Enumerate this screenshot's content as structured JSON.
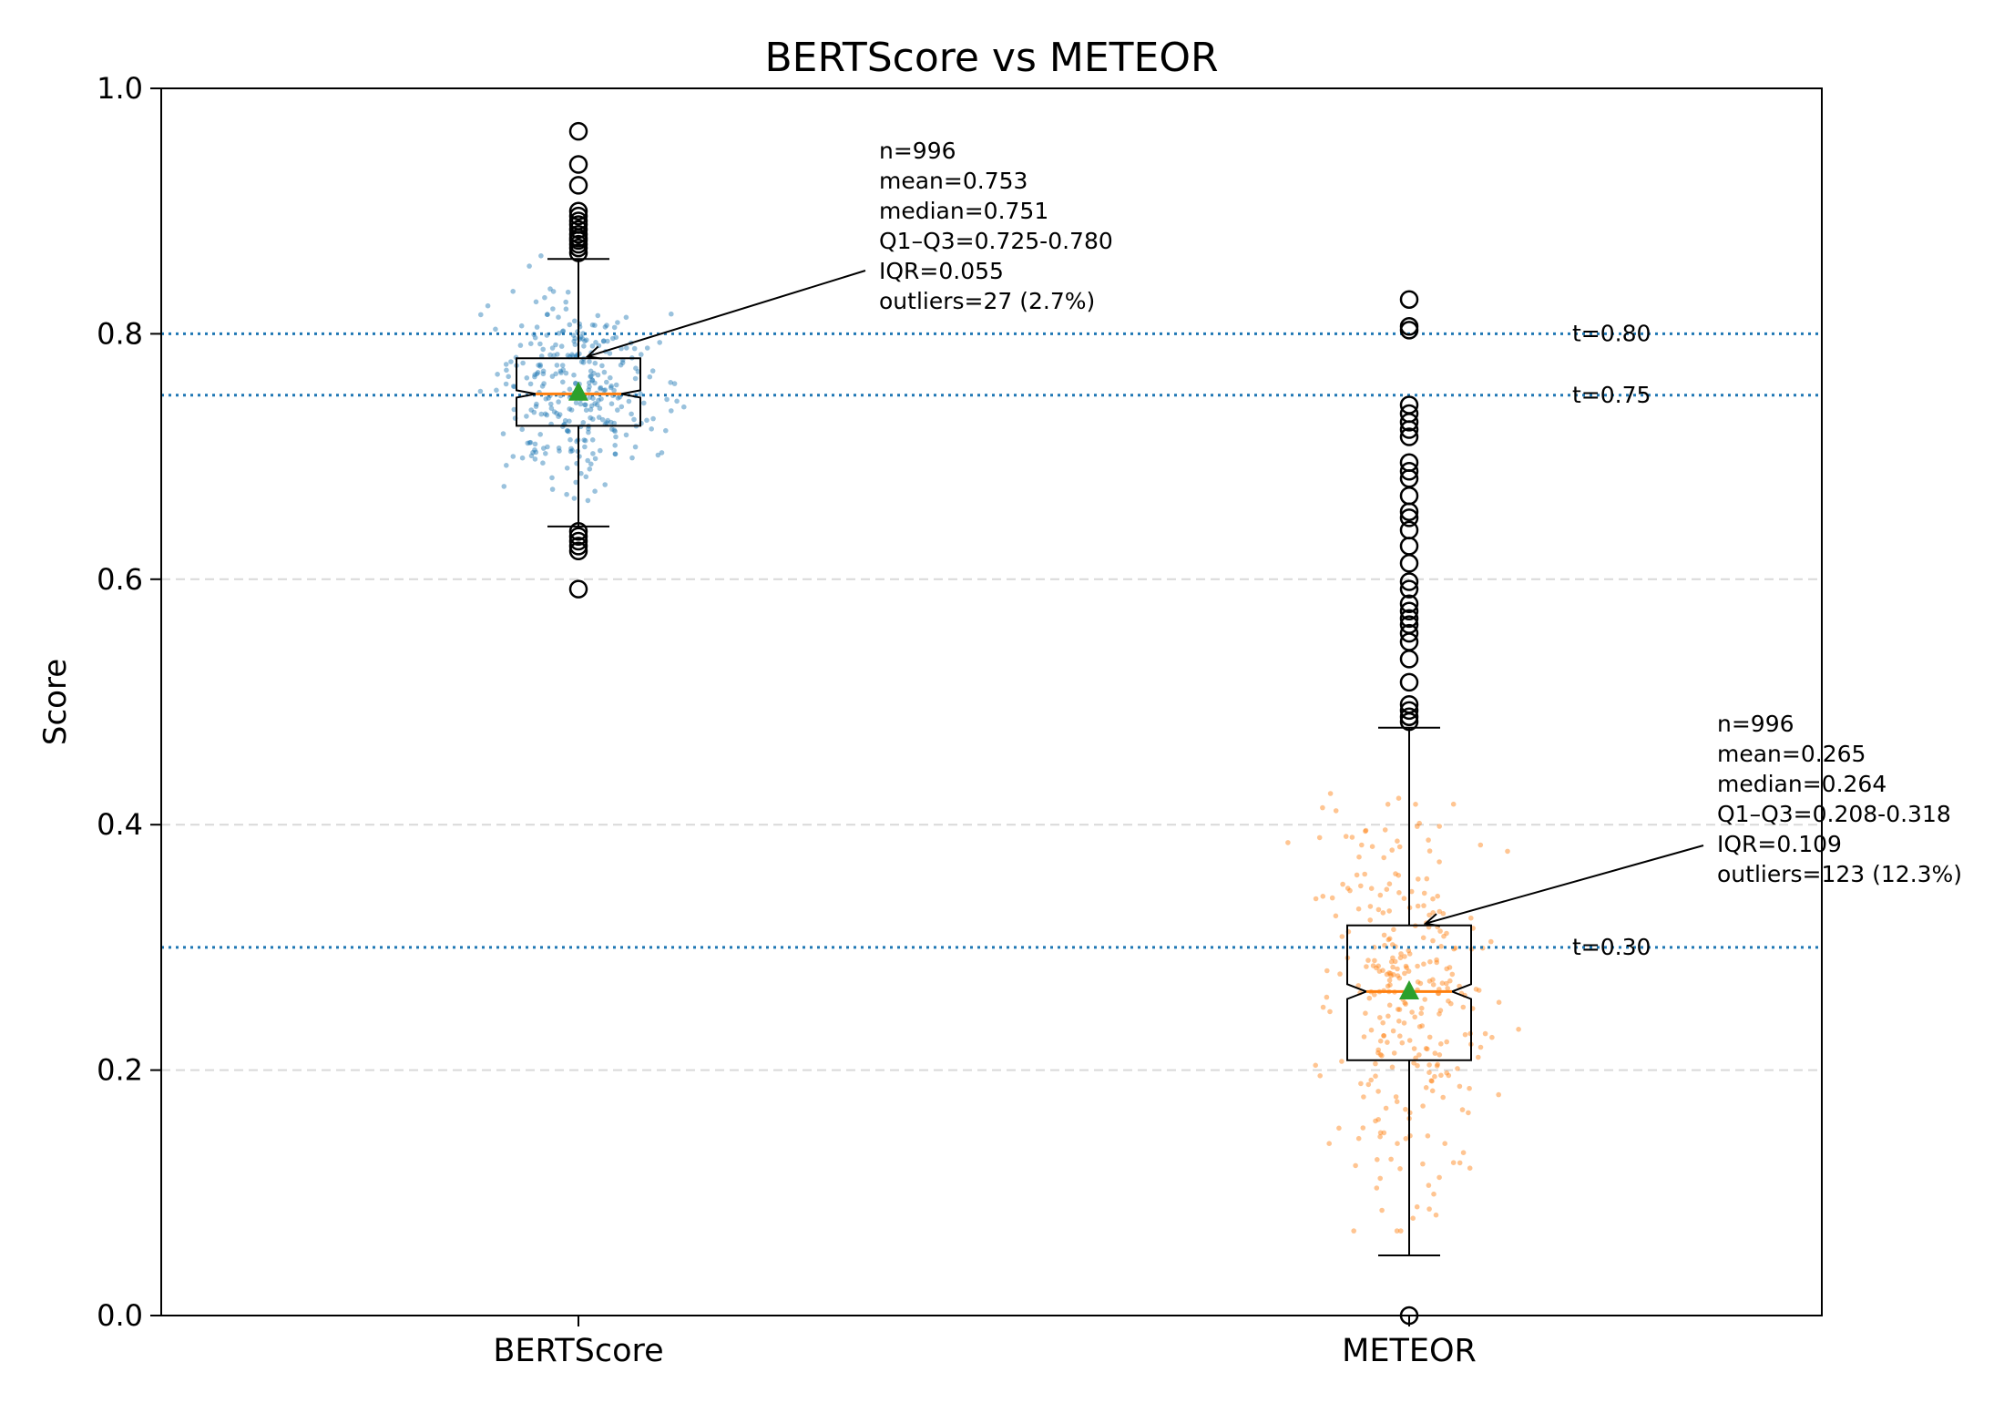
{
  "chart_data": {
    "type": "box",
    "title": "BERTScore vs METEOR",
    "xlabel": "",
    "ylabel": "Score",
    "ylim": [
      0.0,
      1.0
    ],
    "yticks": [
      0.0,
      0.2,
      0.4,
      0.6,
      0.8,
      1.0
    ],
    "ytick_labels": [
      "0.0",
      "0.2",
      "0.4",
      "0.6",
      "0.8",
      "1.0"
    ],
    "categories": [
      "BERTScore",
      "METEOR"
    ],
    "grid": "horizontal dashed at 0.2 0.4 0.6",
    "boxes": [
      {
        "name": "BERTScore",
        "color": "#1f77b4",
        "q1": 0.725,
        "median": 0.751,
        "q3": 0.78,
        "mean": 0.753,
        "whisker_low": 0.643,
        "whisker_high": 0.861,
        "notch_low": 0.748,
        "notch_high": 0.754,
        "outliers": [
          0.965,
          0.938,
          0.921,
          0.9,
          0.896,
          0.892,
          0.889,
          0.885,
          0.881,
          0.878,
          0.876,
          0.873,
          0.87,
          0.866,
          0.639,
          0.635,
          0.631,
          0.627,
          0.623,
          0.592
        ],
        "annotation": [
          "n=996",
          "mean=0.753",
          "median=0.751",
          "Q1–Q3=0.725-0.780",
          "IQR=0.055",
          "outliers=27 (2.7%)"
        ]
      },
      {
        "name": "METEOR",
        "color": "#ff7f0e",
        "q1": 0.208,
        "median": 0.264,
        "q3": 0.318,
        "mean": 0.265,
        "whisker_low": 0.049,
        "whisker_high": 0.479,
        "notch_low": 0.258,
        "notch_high": 0.27,
        "outliers": [
          0.828,
          0.806,
          0.803,
          0.742,
          0.735,
          0.728,
          0.722,
          0.716,
          0.695,
          0.688,
          0.682,
          0.668,
          0.655,
          0.65,
          0.64,
          0.627,
          0.613,
          0.598,
          0.592,
          0.58,
          0.574,
          0.568,
          0.563,
          0.556,
          0.549,
          0.535,
          0.516,
          0.498,
          0.493,
          0.488,
          0.484,
          0.0
        ],
        "annotation": [
          "n=996",
          "mean=0.265",
          "median=0.264",
          "Q1–Q3=0.208-0.318",
          "IQR=0.109",
          "outliers=123 (12.3%)"
        ]
      }
    ],
    "thresholds": [
      {
        "value": 0.8,
        "label": "t=0.80"
      },
      {
        "value": 0.75,
        "label": "t=0.75"
      },
      {
        "value": 0.3,
        "label": "t=0.30"
      }
    ],
    "colors": {
      "threshold": "#1f77b4",
      "median": "#ff7f0e",
      "mean_marker": "#2ca02c",
      "grid": "#d9d9d9"
    }
  }
}
